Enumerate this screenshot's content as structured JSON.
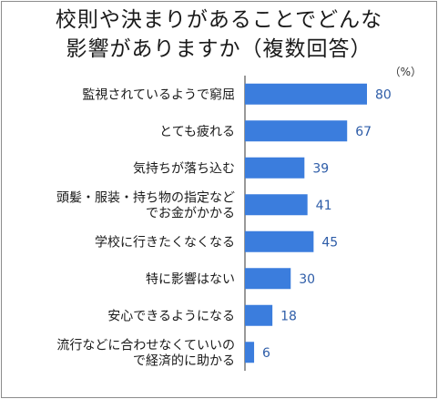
{
  "title_lines": [
    "校則や決まりがあることでどんな",
    "影響がありますか（複数回答）"
  ],
  "unit_label": "（%）",
  "colors": {
    "bar": "#3b7ddd",
    "value_text": "#2e5da8",
    "axis": "#333333"
  },
  "chart_data": {
    "type": "bar",
    "orientation": "horizontal",
    "title": "校則や決まりがあることでどんな影響がありますか（複数回答）",
    "unit": "（%）",
    "categories": [
      [
        "監視されているようで窮屈"
      ],
      [
        "とても疲れる"
      ],
      [
        "気持ちが落ち込む"
      ],
      [
        "頭髪・服装・持ち物の指定など",
        "でお金がかかる"
      ],
      [
        "学校に行きたくなくなる"
      ],
      [
        "特に影響はない"
      ],
      [
        "安心できるようになる"
      ],
      [
        "流行などに合わせなくていいの",
        "で経済的に助かる"
      ]
    ],
    "values": [
      80,
      67,
      39,
      41,
      45,
      30,
      18,
      6
    ],
    "xlim": [
      0,
      100
    ],
    "grid": false,
    "legend": "none"
  }
}
